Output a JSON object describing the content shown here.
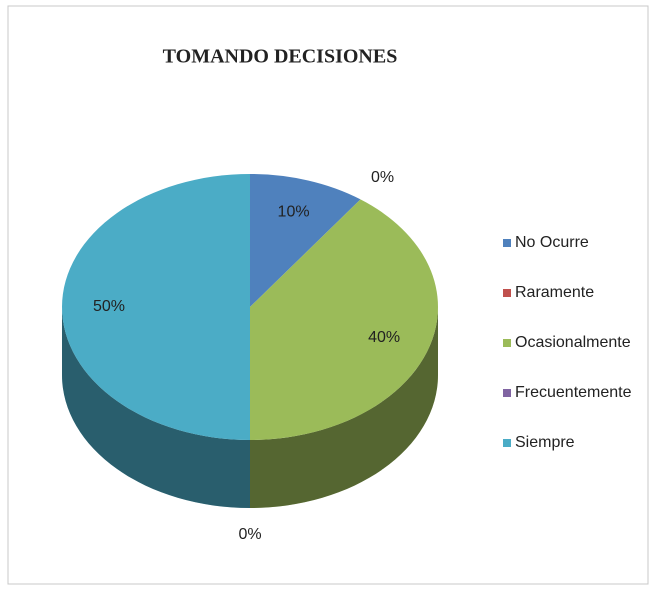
{
  "chart_data": {
    "type": "pie3d",
    "title": "TOMANDO DECISIONES",
    "categories": [
      "No Ocurre",
      "Raramente",
      "Ocasionalmente",
      "Frecuentemente",
      "Siempre"
    ],
    "values": [
      10,
      0,
      40,
      0,
      50
    ],
    "value_labels": [
      "10%",
      "0%",
      "40%",
      "0%",
      "50%"
    ],
    "colors": [
      "#4f81bd",
      "#c0504d",
      "#9bbb59",
      "#8064a2",
      "#4bacc6"
    ],
    "legend": "right"
  }
}
